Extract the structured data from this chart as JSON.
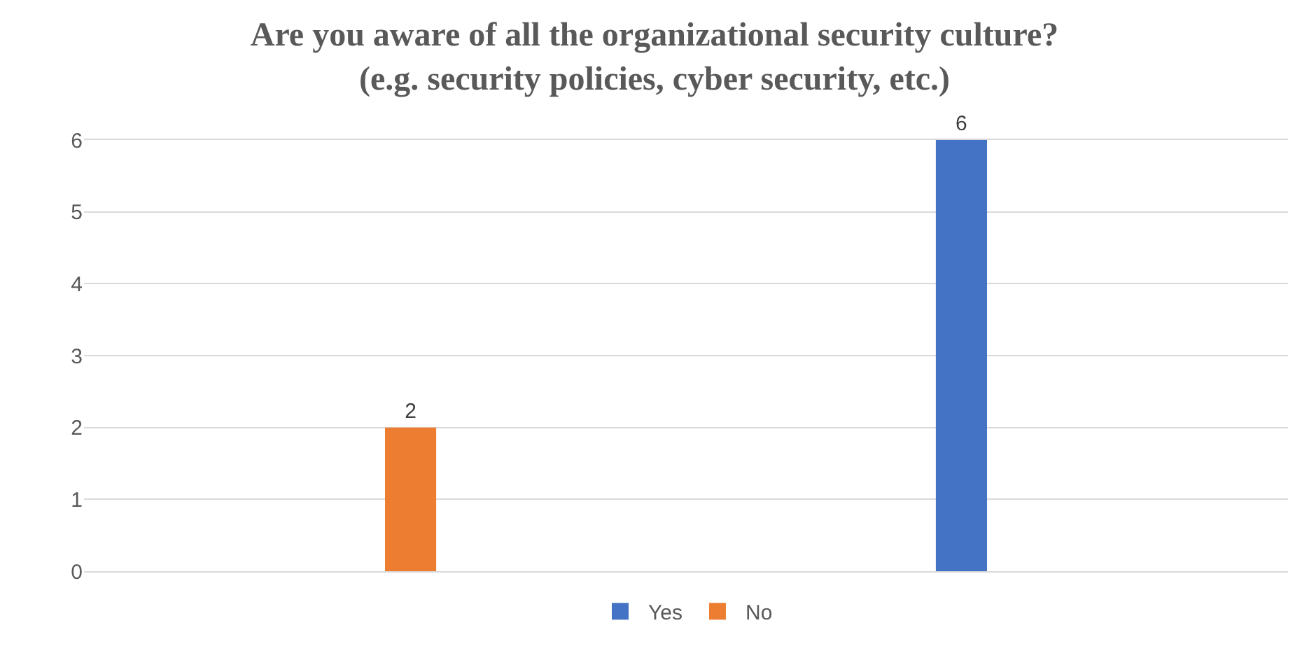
{
  "chart_data": {
    "type": "bar",
    "title": "Are you aware of all the organizational security culture?\n(e.g. security policies, cyber security, etc.)",
    "categories": [
      null,
      null
    ],
    "series": [
      {
        "name": "Yes",
        "color": "#4472c4",
        "values": [
          null,
          6
        ]
      },
      {
        "name": "No",
        "color": "#ed7d31",
        "values": [
          2,
          null
        ]
      }
    ],
    "ylim": [
      0,
      6
    ],
    "yticks": [
      0,
      1,
      2,
      3,
      4,
      5,
      6
    ],
    "grid": "y",
    "legend": "bottom",
    "data_labels": true
  }
}
